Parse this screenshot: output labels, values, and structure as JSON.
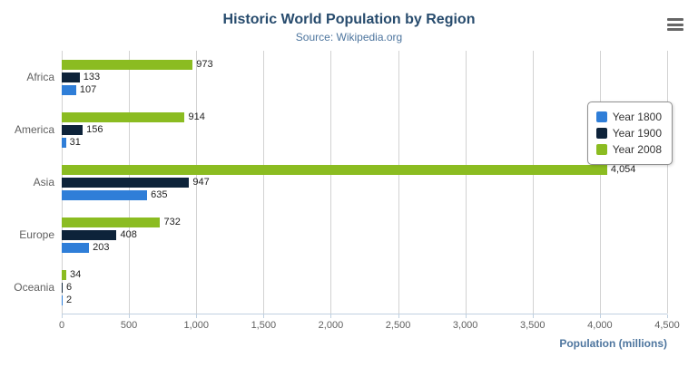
{
  "chart_data": {
    "type": "bar",
    "orientation": "horizontal",
    "title": "Historic World Population by Region",
    "subtitle": "Source: Wikipedia.org",
    "xlabel": "Population (millions)",
    "categories": [
      "Africa",
      "America",
      "Asia",
      "Europe",
      "Oceania"
    ],
    "series": [
      {
        "name": "Year 1800",
        "color": "#2f7ed8",
        "values": [
          107,
          31,
          635,
          203,
          2
        ]
      },
      {
        "name": "Year 1900",
        "color": "#0d233a",
        "values": [
          133,
          156,
          947,
          408,
          6
        ]
      },
      {
        "name": "Year 2008",
        "color": "#8bbc21",
        "values": [
          973,
          914,
          4054,
          732,
          34
        ]
      }
    ],
    "row_order_top_to_bottom": [
      "Year 2008",
      "Year 1900",
      "Year 1800"
    ],
    "xlim": [
      0,
      4500
    ],
    "xticks": [
      0,
      500,
      1000,
      1500,
      2000,
      2500,
      3000,
      3500,
      4000,
      4500
    ],
    "grid": true,
    "legend_position": "right",
    "data_labels_visible": true
  },
  "icons": {
    "menu": "hamburger-icon"
  },
  "colors": {
    "title": "#274b6d",
    "subtitle": "#4d759e",
    "gridline": "#d2d2d2",
    "axis_line": "#c0d0e0",
    "tick_label": "#606060"
  }
}
